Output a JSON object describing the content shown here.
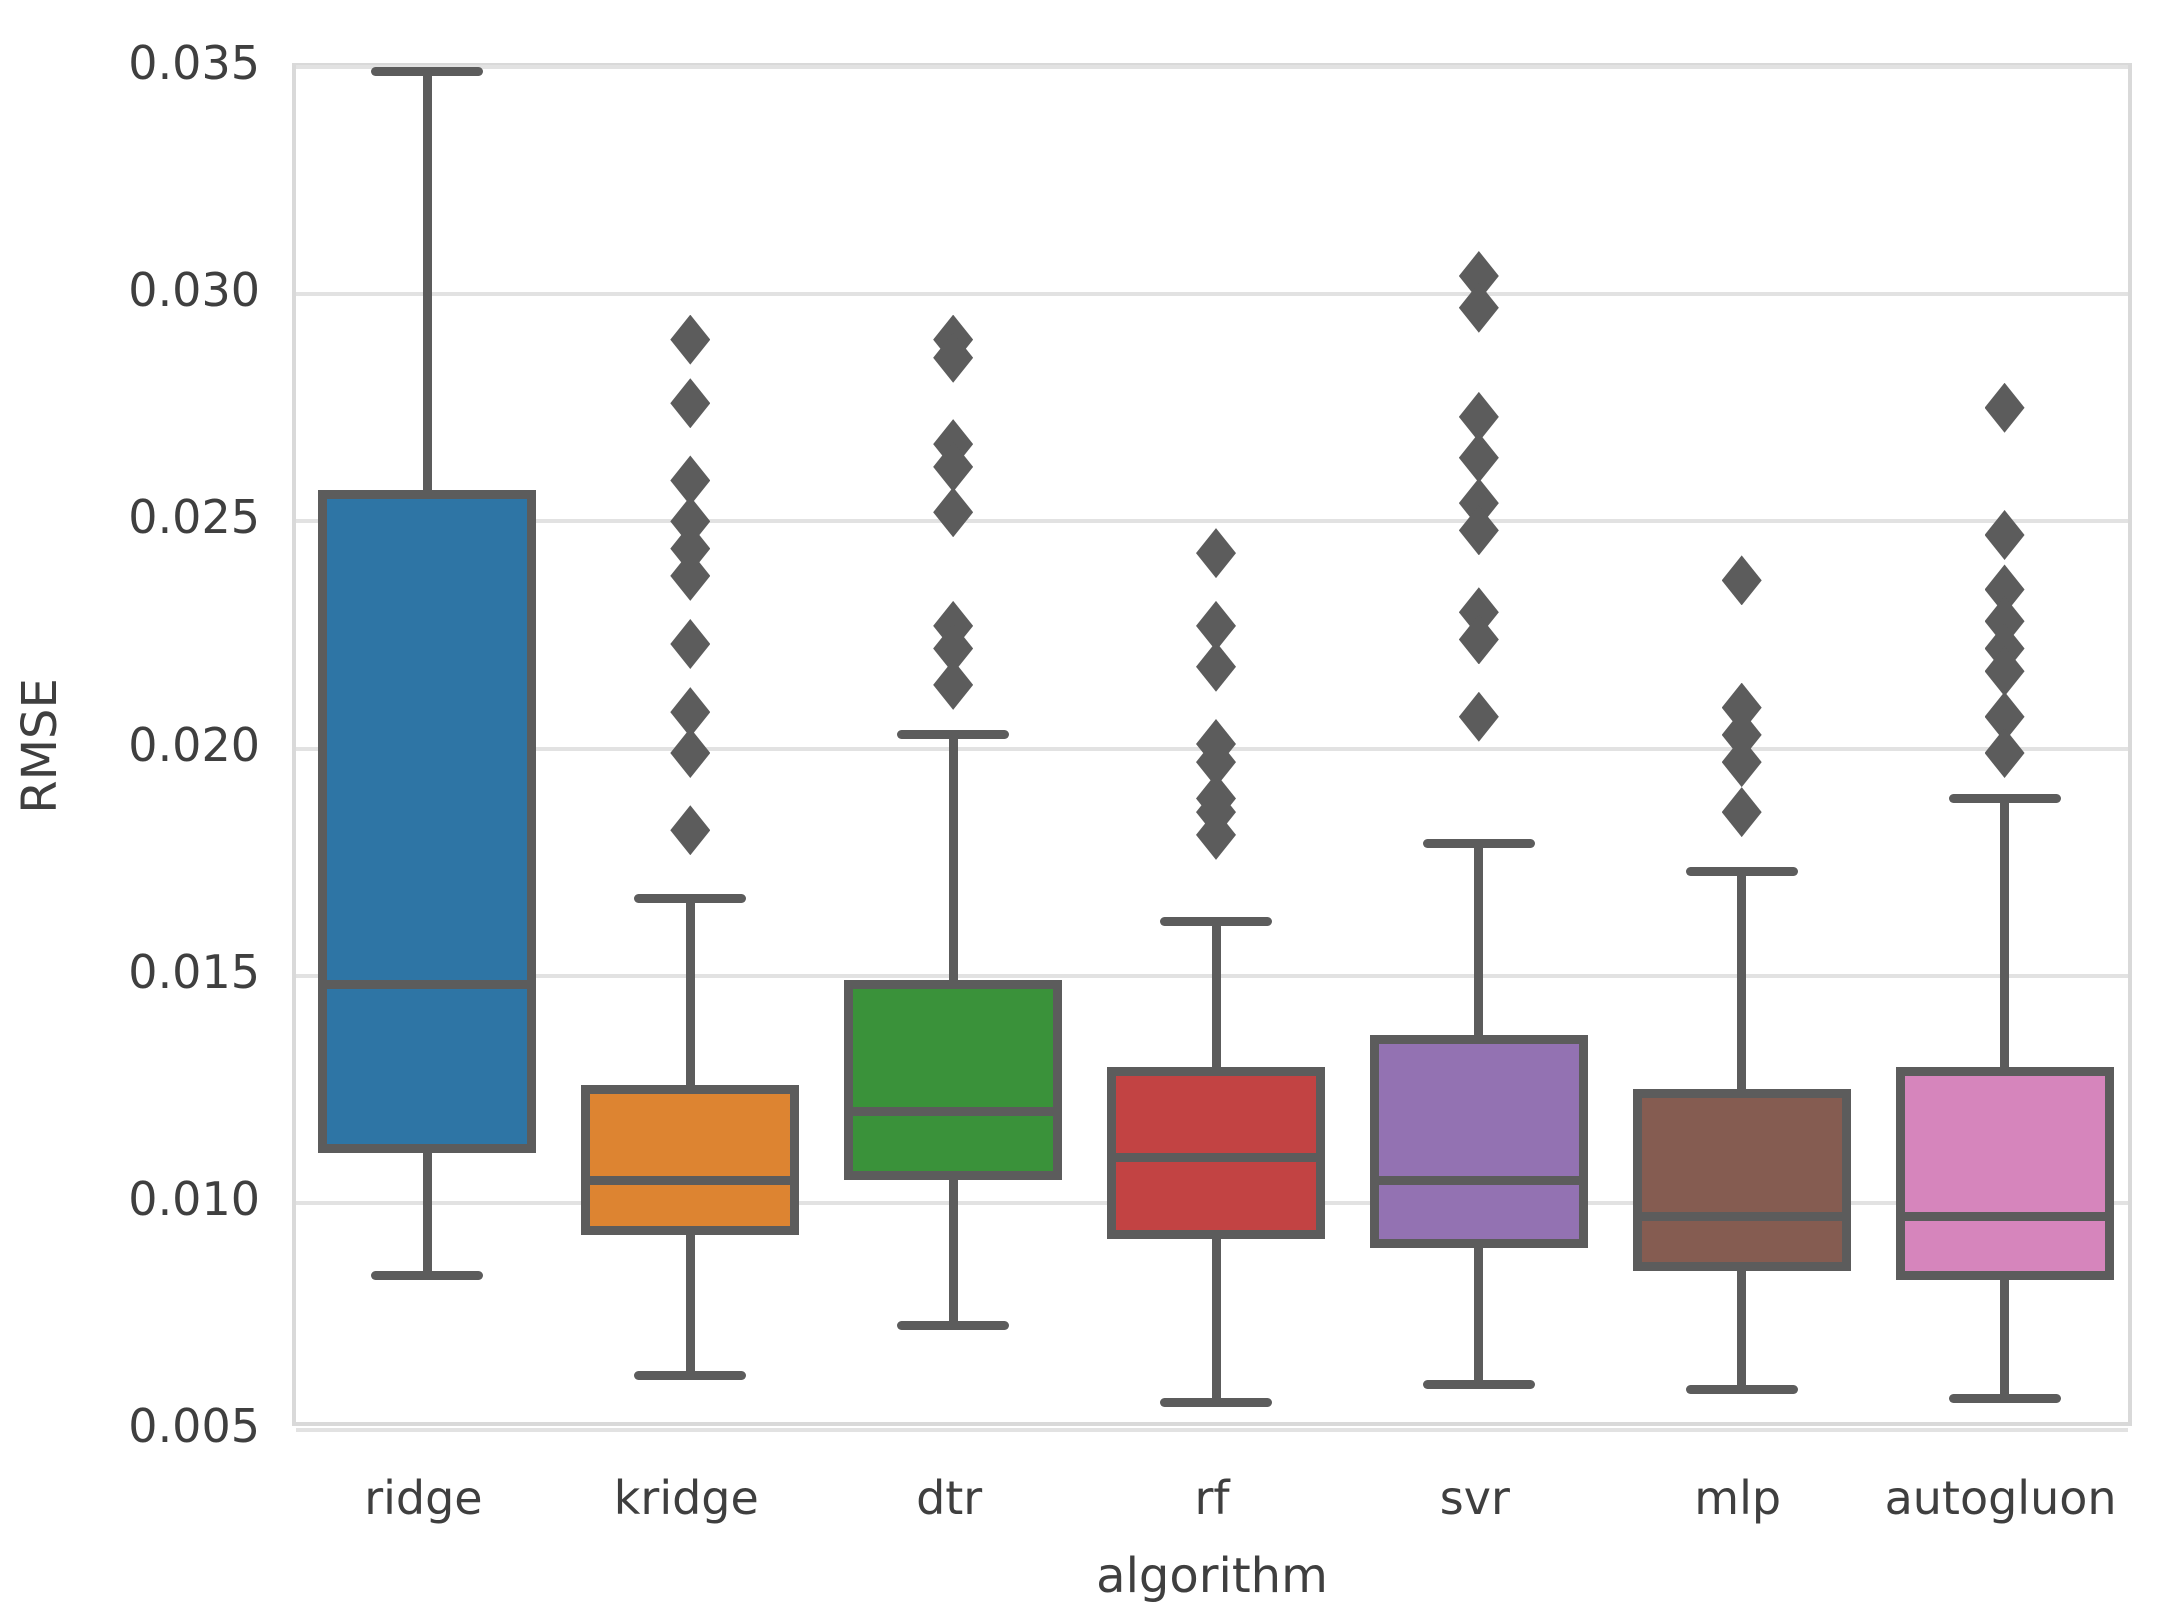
{
  "chart_data": {
    "type": "boxplot",
    "title": "",
    "xlabel": "algorithm",
    "ylabel": "RMSE",
    "ylim": [
      0.005,
      0.035
    ],
    "yticks": [
      0.035,
      0.03,
      0.025,
      0.02,
      0.015,
      0.01,
      0.005
    ],
    "ytick_labels": [
      "0.035",
      "0.030",
      "0.025",
      "0.020",
      "0.015",
      "0.010",
      "0.005"
    ],
    "grid": "horizontal",
    "legend": "none",
    "categories": [
      "ridge",
      "kridge",
      "dtr",
      "rf",
      "svr",
      "mlp",
      "autogluon"
    ],
    "series": [
      {
        "name": "ridge",
        "color": "#2e75a5",
        "whisker_low": 0.0084,
        "q1": 0.0112,
        "median": 0.0148,
        "q3": 0.0256,
        "whisker_high": 0.0349,
        "outliers": []
      },
      {
        "name": "kridge",
        "color": "#dd8431",
        "whisker_low": 0.0062,
        "q1": 0.0094,
        "median": 0.0105,
        "q3": 0.0125,
        "whisker_high": 0.0167,
        "outliers": [
          0.029,
          0.0276,
          0.0259,
          0.025,
          0.0244,
          0.0238,
          0.0223,
          0.0208,
          0.0199,
          0.0182
        ]
      },
      {
        "name": "dtr",
        "color": "#3a923a",
        "whisker_low": 0.0073,
        "q1": 0.0106,
        "median": 0.012,
        "q3": 0.0148,
        "whisker_high": 0.0203,
        "outliers": [
          0.029,
          0.0286,
          0.0267,
          0.0262,
          0.0252,
          0.0227,
          0.0222,
          0.0214
        ]
      },
      {
        "name": "rf",
        "color": "#c24343",
        "whisker_low": 0.0056,
        "q1": 0.0093,
        "median": 0.011,
        "q3": 0.0129,
        "whisker_high": 0.0162,
        "outliers": [
          0.0243,
          0.0227,
          0.0218,
          0.0201,
          0.0197,
          0.0189,
          0.0186,
          0.0181
        ]
      },
      {
        "name": "svr",
        "color": "#9372b2",
        "whisker_low": 0.006,
        "q1": 0.0091,
        "median": 0.0105,
        "q3": 0.0136,
        "whisker_high": 0.0179,
        "outliers": [
          0.0304,
          0.0297,
          0.0273,
          0.0264,
          0.0254,
          0.0248,
          0.023,
          0.0224,
          0.0207
        ]
      },
      {
        "name": "mlp",
        "color": "#855c51",
        "whisker_low": 0.0059,
        "q1": 0.0086,
        "median": 0.0097,
        "q3": 0.0124,
        "whisker_high": 0.0173,
        "outliers": [
          0.0237,
          0.0209,
          0.0203,
          0.0197,
          0.0186
        ]
      },
      {
        "name": "autogluon",
        "color": "#d685bc",
        "whisker_low": 0.0057,
        "q1": 0.0084,
        "median": 0.0097,
        "q3": 0.0129,
        "whisker_high": 0.0189,
        "outliers": [
          0.0275,
          0.0247,
          0.0235,
          0.0228,
          0.0222,
          0.0217,
          0.0207,
          0.0199
        ]
      }
    ],
    "style_colors": {
      "box_edge": "#5c5c5c",
      "whisker": "#5c5c5c",
      "outlier": "#5c5c5c",
      "gridline": "#e2e2e2",
      "spine": "#d9d9d9",
      "text": "#3f3f3f",
      "background": "#ffffff"
    }
  }
}
